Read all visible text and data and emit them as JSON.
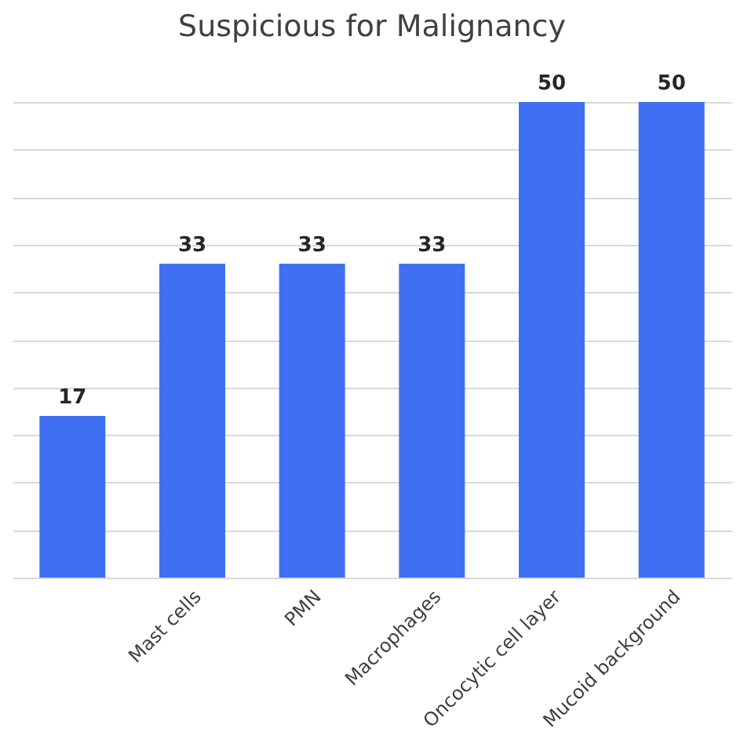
{
  "chart_data": {
    "type": "bar",
    "title": "Suspicious for Malignancy",
    "categories": [
      null,
      "Mast cells",
      "PMN",
      "Macrophages",
      "Oncocytic cell layer",
      "Mucoid background"
    ],
    "values": [
      17,
      33,
      33,
      33,
      50,
      50
    ],
    "color": "#3f6ff2",
    "grid": "y",
    "data_labels": true,
    "tick_labels": "x"
  }
}
